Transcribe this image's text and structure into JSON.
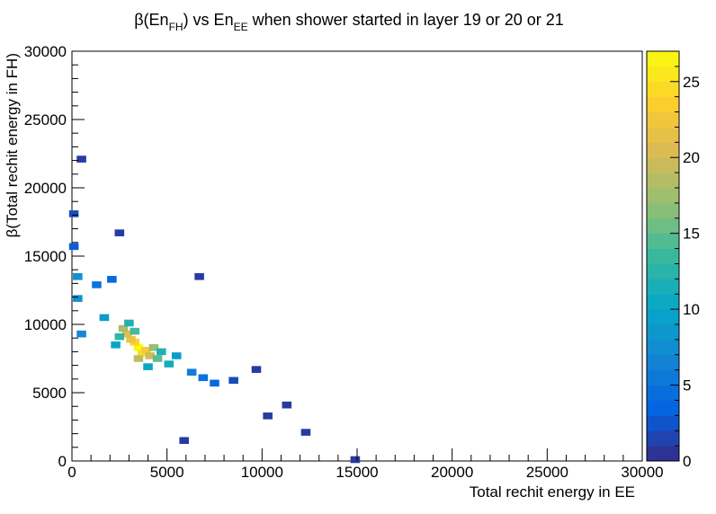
{
  "chart_data": {
    "type": "heatmap",
    "title": {
      "prefix": "β(En",
      "sub1": "FH",
      "middle": ") vs En",
      "sub2": "EE",
      "suffix": " when  shower started in layer 19 or 20 or 21"
    },
    "xlabel": "Total rechit energy in EE",
    "ylabel": "β(Total rechit energy in FH)",
    "xlim": [
      0,
      30000
    ],
    "ylim": [
      0,
      30000
    ],
    "x_ticks": [
      "0",
      "5000",
      "10000",
      "15000",
      "20000",
      "25000",
      "30000"
    ],
    "y_ticks": [
      "0",
      "5000",
      "10000",
      "15000",
      "20000",
      "25000",
      "30000"
    ],
    "x_tick_values": [
      0,
      5000,
      10000,
      15000,
      20000,
      25000,
      30000
    ],
    "y_tick_values": [
      0,
      5000,
      10000,
      15000,
      20000,
      25000,
      30000
    ],
    "bins": [
      300,
      300
    ],
    "z_range": [
      0,
      27
    ],
    "z_ticks": [
      "0",
      "5",
      "10",
      "15",
      "20",
      "25"
    ],
    "z_tick_values": [
      0,
      5,
      10,
      15,
      20,
      25
    ],
    "colormap": "kBird",
    "palette": [
      "#352a87",
      "#0363e1",
      "#1485d4",
      "#06a7c6",
      "#38b99e",
      "#92bf73",
      "#d9ba56",
      "#fcce2e",
      "#f9fb0e"
    ],
    "cells": [
      [
        3500,
        8300,
        27
      ],
      [
        3700,
        7900,
        25
      ],
      [
        3300,
        8700,
        24
      ],
      [
        3900,
        8100,
        23
      ],
      [
        3100,
        8900,
        22
      ],
      [
        2900,
        9300,
        21
      ],
      [
        4100,
        7700,
        20
      ],
      [
        3500,
        7500,
        19
      ],
      [
        2700,
        9700,
        18
      ],
      [
        4300,
        8300,
        17
      ],
      [
        4500,
        7500,
        15
      ],
      [
        3300,
        9500,
        14
      ],
      [
        2500,
        9100,
        13
      ],
      [
        4700,
        8000,
        12
      ],
      [
        3000,
        10100,
        12
      ],
      [
        5100,
        7100,
        11
      ],
      [
        2300,
        8500,
        10
      ],
      [
        4000,
        6900,
        10
      ],
      [
        5500,
        7700,
        9
      ],
      [
        1700,
        10500,
        9
      ],
      [
        300,
        13500,
        8
      ],
      [
        300,
        11900,
        8
      ],
      [
        500,
        9300,
        7
      ],
      [
        6300,
        6500,
        6
      ],
      [
        6900,
        6100,
        5
      ],
      [
        1300,
        12900,
        5
      ],
      [
        2100,
        13300,
        4
      ],
      [
        7500,
        5700,
        4
      ],
      [
        100,
        15700,
        3
      ],
      [
        100,
        18100,
        2
      ],
      [
        8500,
        5900,
        2
      ],
      [
        9700,
        6700,
        1
      ],
      [
        11300,
        4100,
        1
      ],
      [
        14900,
        100,
        1
      ],
      [
        2500,
        16700,
        1
      ],
      [
        6700,
        13500,
        1
      ],
      [
        500,
        22100,
        1
      ],
      [
        12300,
        2100,
        1
      ],
      [
        10300,
        3300,
        1
      ],
      [
        5900,
        1500,
        1
      ]
    ]
  }
}
